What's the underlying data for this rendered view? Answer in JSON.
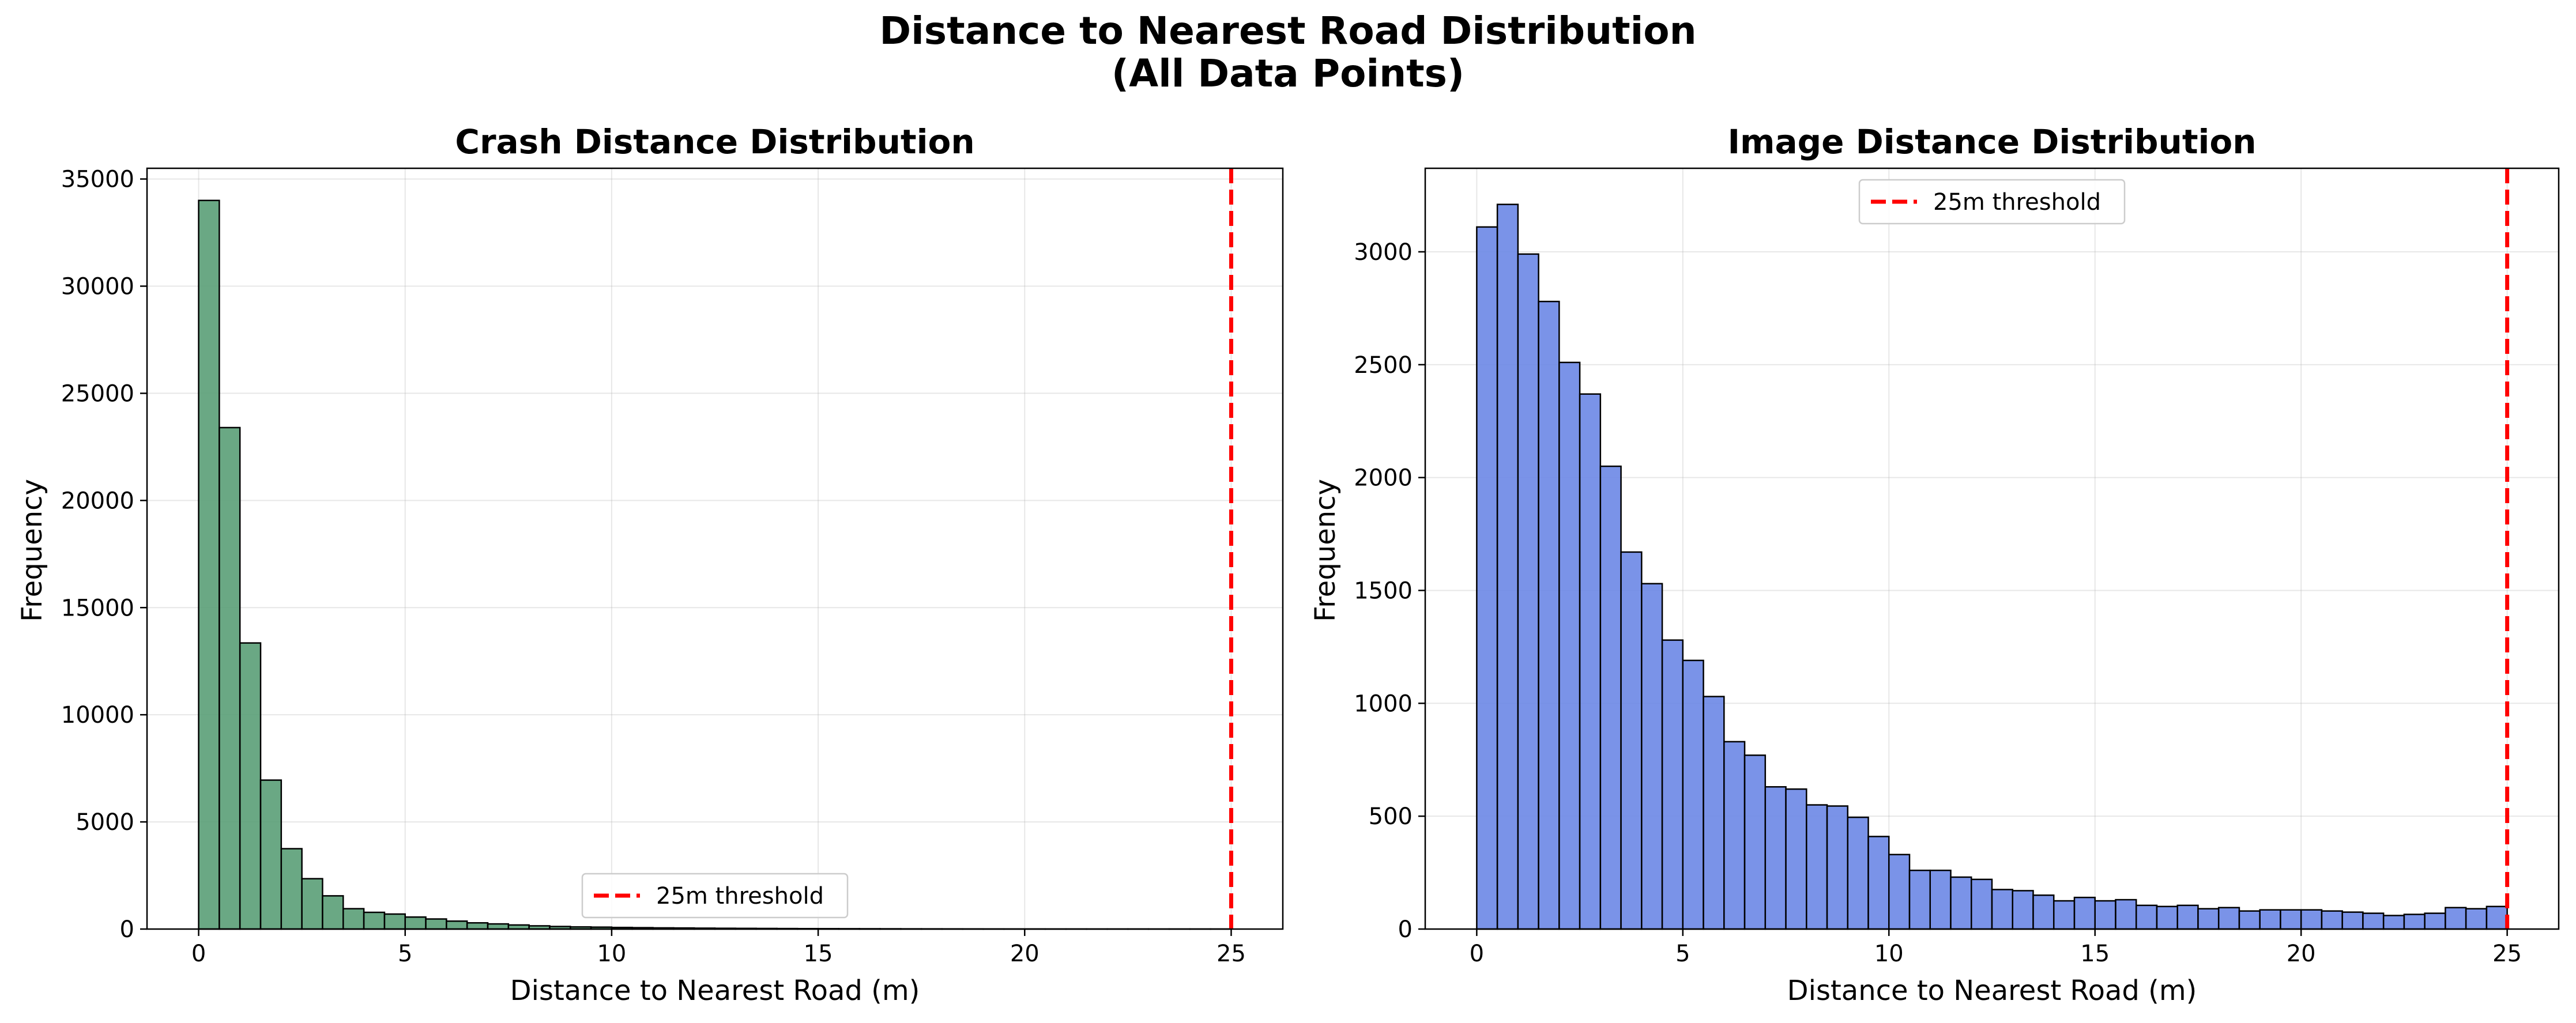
{
  "figure": {
    "title_line1": "Distance to Nearest Road Distribution",
    "title_line2": "(All Data Points)"
  },
  "chart_data": [
    {
      "type": "bar",
      "title": "Crash Distance Distribution",
      "xlabel": "Distance to Nearest Road (m)",
      "ylabel": "Frequency",
      "xlim": [
        -1.25,
        26.25
      ],
      "ylim": [
        0,
        35500
      ],
      "xticks": [
        0,
        5,
        10,
        15,
        20,
        25
      ],
      "yticks": [
        0,
        5000,
        10000,
        15000,
        20000,
        25000,
        30000,
        35000
      ],
      "bin_width": 0.5,
      "bin_start": 0,
      "values": [
        34000,
        23400,
        13350,
        6950,
        3750,
        2350,
        1550,
        950,
        780,
        700,
        560,
        470,
        370,
        290,
        240,
        190,
        150,
        120,
        100,
        90,
        75,
        65,
        55,
        50,
        42,
        36,
        32,
        28,
        24,
        20,
        18,
        16,
        14,
        12,
        10,
        9,
        8,
        7,
        6,
        5,
        5,
        4,
        4,
        3,
        3,
        3,
        2,
        2,
        2,
        2
      ],
      "bar_color": "#5a9e77",
      "threshold": 25,
      "legend": {
        "label": "25m threshold",
        "position": "lower center"
      },
      "grid": true
    },
    {
      "type": "bar",
      "title": "Image Distance Distribution",
      "xlabel": "Distance to Nearest Road (m)",
      "ylabel": "Frequency",
      "xlim": [
        -1.25,
        26.25
      ],
      "ylim": [
        0,
        3370
      ],
      "xticks": [
        0,
        5,
        10,
        15,
        20,
        25
      ],
      "yticks": [
        0,
        500,
        1000,
        1500,
        2000,
        2500,
        3000
      ],
      "bin_width": 0.5,
      "bin_start": 0,
      "values": [
        3110,
        3210,
        2990,
        2780,
        2510,
        2370,
        2050,
        1670,
        1530,
        1280,
        1190,
        1030,
        830,
        770,
        630,
        620,
        550,
        545,
        495,
        410,
        330,
        260,
        260,
        230,
        220,
        175,
        170,
        150,
        125,
        140,
        125,
        130,
        105,
        100,
        105,
        90,
        95,
        80,
        85,
        85,
        85,
        80,
        75,
        70,
        60,
        65,
        70,
        95,
        90,
        100
      ],
      "bar_color": "#6b87e6",
      "threshold": 25,
      "legend": {
        "label": "25m threshold",
        "position": "upper center"
      },
      "grid": true
    }
  ]
}
